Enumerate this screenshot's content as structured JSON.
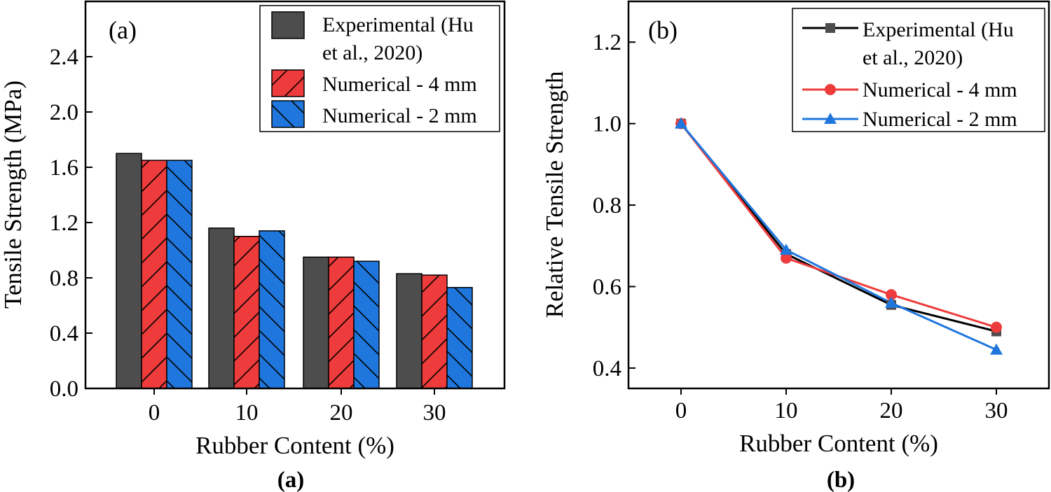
{
  "chart_data": [
    {
      "type": "bar",
      "panel_label": "(a)",
      "caption": "(a)",
      "xlabel": "Rubber Content (%)",
      "ylabel": "Tensile Strength (MPa)",
      "categories": [
        "0",
        "10",
        "20",
        "30"
      ],
      "ylim": [
        0,
        2.8
      ],
      "yticks": [
        "0.0",
        "0.4",
        "0.8",
        "1.2",
        "1.6",
        "2.0",
        "2.4"
      ],
      "legend_position": "top-right",
      "legend_labels": [
        "Experimental (Hu",
        "et al., 2020)",
        "Numerical - 4 mm",
        "Numerical - 2 mm"
      ],
      "series": [
        {
          "name": "Experimental (Hu et al., 2020)",
          "color": "#4d4d4d",
          "values": [
            1.7,
            1.16,
            0.95,
            0.83
          ]
        },
        {
          "name": "Numerical - 4 mm",
          "color": "#ee3b3b",
          "values": [
            1.65,
            1.1,
            0.95,
            0.82
          ]
        },
        {
          "name": "Numerical - 2 mm",
          "color": "#1f77dd",
          "values": [
            1.65,
            1.14,
            0.92,
            0.73
          ]
        }
      ]
    },
    {
      "type": "line",
      "panel_label": "(b)",
      "caption": "(b)",
      "xlabel": "Rubber Content (%)",
      "ylabel": "Relative Tensile Strength",
      "x": [
        0,
        10,
        20,
        30
      ],
      "xticks": [
        "0",
        "10",
        "20",
        "30"
      ],
      "xlim": [
        -5,
        35
      ],
      "ylim": [
        0.35,
        1.3
      ],
      "yticks": [
        "0.4",
        "0.6",
        "0.8",
        "1.0",
        "1.2"
      ],
      "legend_position": "top-right",
      "legend_labels": [
        "Experimental (Hu",
        "et al., 2020)",
        "Numerical - 4 mm",
        "Numerical - 2 mm"
      ],
      "series": [
        {
          "name": "Experimental (Hu et al., 2020)",
          "color": "#000000",
          "marker_color": "#4d4d4d",
          "marker": "square",
          "values": [
            1.0,
            0.68,
            0.555,
            0.49
          ]
        },
        {
          "name": "Numerical - 4 mm",
          "color": "#ee3b3b",
          "marker_color": "#ee3b3b",
          "marker": "circle",
          "values": [
            1.0,
            0.67,
            0.58,
            0.5
          ]
        },
        {
          "name": "Numerical - 2 mm",
          "color": "#1f77dd",
          "marker_color": "#1f77dd",
          "marker": "triangle",
          "values": [
            1.0,
            0.69,
            0.56,
            0.445
          ]
        }
      ]
    }
  ]
}
